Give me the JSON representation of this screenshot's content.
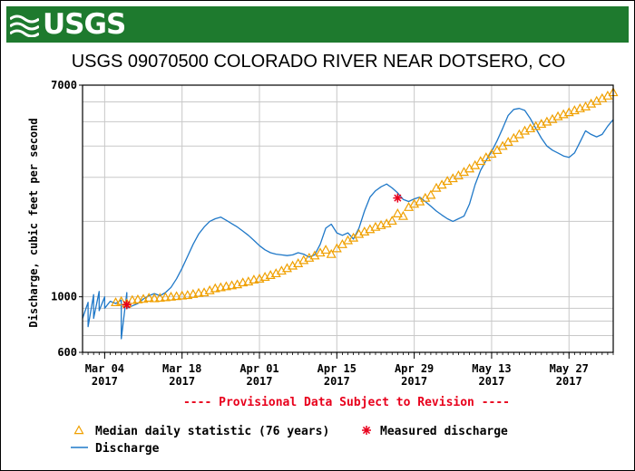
{
  "logo": {
    "wordmark": "USGS"
  },
  "colors": {
    "logo_bg": "#1e7a2e",
    "discharge": "#1f78c8",
    "median": "#f0a000",
    "measured": "#e8001c",
    "grid": "#c8c8c8",
    "provisional": "#e8001c"
  },
  "chart_data": {
    "type": "line",
    "title": "USGS 09070500 COLORADO RIVER NEAR DOTSERO, CO",
    "ylabel": "Discharge, cubic feet per second",
    "xlabel": "",
    "y_scale": "log",
    "ylim": [
      600,
      7000
    ],
    "xlim": [
      "2017-02-28",
      "2017-06-04"
    ],
    "y_tick_labels": [
      {
        "value": 7000,
        "label": "7000"
      },
      {
        "value": 1000,
        "label": "1000"
      },
      {
        "value": 600,
        "label": "600"
      }
    ],
    "y_gridlines": [
      700,
      800,
      900,
      1000,
      2000,
      3000,
      4000,
      5000,
      6000,
      7000
    ],
    "x_ticks": [
      {
        "date": "2017-03-04",
        "line1": "Mar 04",
        "line2": "2017"
      },
      {
        "date": "2017-03-18",
        "line1": "Mar 18",
        "line2": "2017"
      },
      {
        "date": "2017-04-01",
        "line1": "Apr 01",
        "line2": "2017"
      },
      {
        "date": "2017-04-15",
        "line1": "Apr 15",
        "line2": "2017"
      },
      {
        "date": "2017-04-29",
        "line1": "Apr 29",
        "line2": "2017"
      },
      {
        "date": "2017-05-13",
        "line1": "May 13",
        "line2": "2017"
      },
      {
        "date": "2017-05-27",
        "line1": "May 27",
        "line2": "2017"
      }
    ],
    "grid": true,
    "annotation": "---- Provisional Data Subject to Revision ----",
    "series": [
      {
        "name": "Discharge",
        "style": "line",
        "points": [
          [
            "2017-02-28",
            820
          ],
          [
            "2017-03-01",
            950
          ],
          [
            "2017-03-01",
            760
          ],
          [
            "2017-03-02",
            1020
          ],
          [
            "2017-03-02",
            820
          ],
          [
            "2017-03-03",
            1050
          ],
          [
            "2017-03-03",
            880
          ],
          [
            "2017-03-04",
            1000
          ],
          [
            "2017-03-04",
            900
          ],
          [
            "2017-03-05",
            960
          ],
          [
            "2017-03-06",
            940
          ],
          [
            "2017-03-07",
            970
          ],
          [
            "2017-03-07",
            880
          ],
          [
            "2017-03-07",
            680
          ],
          [
            "2017-03-08",
            1040
          ],
          [
            "2017-03-08",
            900
          ],
          [
            "2017-03-09",
            920
          ],
          [
            "2017-03-10",
            940
          ],
          [
            "2017-03-11",
            980
          ],
          [
            "2017-03-12",
            1010
          ],
          [
            "2017-03-13",
            1030
          ],
          [
            "2017-03-14",
            1010
          ],
          [
            "2017-03-15",
            1040
          ],
          [
            "2017-03-16",
            1090
          ],
          [
            "2017-03-17",
            1180
          ],
          [
            "2017-03-18",
            1300
          ],
          [
            "2017-03-19",
            1450
          ],
          [
            "2017-03-20",
            1620
          ],
          [
            "2017-03-21",
            1780
          ],
          [
            "2017-03-22",
            1900
          ],
          [
            "2017-03-23",
            2000
          ],
          [
            "2017-03-24",
            2050
          ],
          [
            "2017-03-25",
            2080
          ],
          [
            "2017-03-26",
            2020
          ],
          [
            "2017-03-27",
            1960
          ],
          [
            "2017-03-28",
            1900
          ],
          [
            "2017-03-29",
            1830
          ],
          [
            "2017-03-30",
            1760
          ],
          [
            "2017-03-31",
            1680
          ],
          [
            "2017-04-01",
            1600
          ],
          [
            "2017-04-02",
            1540
          ],
          [
            "2017-04-03",
            1500
          ],
          [
            "2017-04-04",
            1480
          ],
          [
            "2017-04-05",
            1470
          ],
          [
            "2017-04-06",
            1460
          ],
          [
            "2017-04-07",
            1470
          ],
          [
            "2017-04-08",
            1500
          ],
          [
            "2017-04-09",
            1480
          ],
          [
            "2017-04-10",
            1440
          ],
          [
            "2017-04-11",
            1470
          ],
          [
            "2017-04-12",
            1620
          ],
          [
            "2017-04-13",
            1880
          ],
          [
            "2017-04-14",
            1950
          ],
          [
            "2017-04-15",
            1800
          ],
          [
            "2017-04-16",
            1760
          ],
          [
            "2017-04-17",
            1800
          ],
          [
            "2017-04-18",
            1700
          ],
          [
            "2017-04-19",
            1880
          ],
          [
            "2017-04-20",
            2200
          ],
          [
            "2017-04-21",
            2500
          ],
          [
            "2017-04-22",
            2650
          ],
          [
            "2017-04-23",
            2750
          ],
          [
            "2017-04-24",
            2820
          ],
          [
            "2017-04-25",
            2720
          ],
          [
            "2017-04-26",
            2600
          ],
          [
            "2017-04-27",
            2450
          ],
          [
            "2017-04-28",
            2400
          ],
          [
            "2017-04-29",
            2460
          ],
          [
            "2017-04-30",
            2500
          ],
          [
            "2017-05-01",
            2400
          ],
          [
            "2017-05-02",
            2300
          ],
          [
            "2017-05-03",
            2200
          ],
          [
            "2017-05-04",
            2120
          ],
          [
            "2017-05-05",
            2050
          ],
          [
            "2017-05-06",
            2000
          ],
          [
            "2017-05-07",
            2050
          ],
          [
            "2017-05-08",
            2100
          ],
          [
            "2017-05-09",
            2350
          ],
          [
            "2017-05-10",
            2800
          ],
          [
            "2017-05-11",
            3200
          ],
          [
            "2017-05-12",
            3500
          ],
          [
            "2017-05-13",
            3800
          ],
          [
            "2017-05-14",
            4200
          ],
          [
            "2017-05-15",
            4700
          ],
          [
            "2017-05-16",
            5300
          ],
          [
            "2017-05-17",
            5600
          ],
          [
            "2017-05-18",
            5650
          ],
          [
            "2017-05-19",
            5550
          ],
          [
            "2017-05-20",
            5150
          ],
          [
            "2017-05-21",
            4700
          ],
          [
            "2017-05-22",
            4300
          ],
          [
            "2017-05-23",
            4000
          ],
          [
            "2017-05-24",
            3850
          ],
          [
            "2017-05-25",
            3750
          ],
          [
            "2017-05-26",
            3650
          ],
          [
            "2017-05-27",
            3600
          ],
          [
            "2017-05-28",
            3750
          ],
          [
            "2017-05-29",
            4150
          ],
          [
            "2017-05-30",
            4600
          ],
          [
            "2017-05-31",
            4450
          ],
          [
            "2017-06-01",
            4350
          ],
          [
            "2017-06-02",
            4450
          ],
          [
            "2017-06-03",
            4800
          ],
          [
            "2017-06-04",
            5100
          ]
        ]
      },
      {
        "name": "Median daily statistic (76 years)",
        "style": "triangle",
        "points": [
          [
            "2017-03-06",
            950
          ],
          [
            "2017-03-07",
            960
          ],
          [
            "2017-03-08",
            940
          ],
          [
            "2017-03-09",
            970
          ],
          [
            "2017-03-10",
            975
          ],
          [
            "2017-03-11",
            980
          ],
          [
            "2017-03-12",
            990
          ],
          [
            "2017-03-13",
            985
          ],
          [
            "2017-03-14",
            990
          ],
          [
            "2017-03-15",
            995
          ],
          [
            "2017-03-16",
            1000
          ],
          [
            "2017-03-17",
            1005
          ],
          [
            "2017-03-18",
            1010
          ],
          [
            "2017-03-19",
            1015
          ],
          [
            "2017-03-20",
            1025
          ],
          [
            "2017-03-21",
            1035
          ],
          [
            "2017-03-22",
            1040
          ],
          [
            "2017-03-23",
            1060
          ],
          [
            "2017-03-24",
            1080
          ],
          [
            "2017-03-25",
            1090
          ],
          [
            "2017-03-26",
            1100
          ],
          [
            "2017-03-27",
            1110
          ],
          [
            "2017-03-28",
            1120
          ],
          [
            "2017-03-29",
            1140
          ],
          [
            "2017-03-30",
            1150
          ],
          [
            "2017-03-31",
            1170
          ],
          [
            "2017-04-01",
            1180
          ],
          [
            "2017-04-02",
            1200
          ],
          [
            "2017-04-03",
            1220
          ],
          [
            "2017-04-04",
            1240
          ],
          [
            "2017-04-05",
            1270
          ],
          [
            "2017-04-06",
            1300
          ],
          [
            "2017-04-07",
            1330
          ],
          [
            "2017-04-08",
            1360
          ],
          [
            "2017-04-09",
            1400
          ],
          [
            "2017-04-10",
            1430
          ],
          [
            "2017-04-11",
            1460
          ],
          [
            "2017-04-12",
            1500
          ],
          [
            "2017-04-13",
            1540
          ],
          [
            "2017-04-14",
            1480
          ],
          [
            "2017-04-15",
            1560
          ],
          [
            "2017-04-16",
            1620
          ],
          [
            "2017-04-17",
            1680
          ],
          [
            "2017-04-18",
            1720
          ],
          [
            "2017-04-19",
            1780
          ],
          [
            "2017-04-20",
            1820
          ],
          [
            "2017-04-21",
            1860
          ],
          [
            "2017-04-22",
            1900
          ],
          [
            "2017-04-23",
            1930
          ],
          [
            "2017-04-24",
            1960
          ],
          [
            "2017-04-25",
            2010
          ],
          [
            "2017-04-26",
            2150
          ],
          [
            "2017-04-27",
            2100
          ],
          [
            "2017-04-28",
            2280
          ],
          [
            "2017-04-29",
            2350
          ],
          [
            "2017-04-30",
            2400
          ],
          [
            "2017-05-01",
            2480
          ],
          [
            "2017-05-02",
            2550
          ],
          [
            "2017-05-03",
            2720
          ],
          [
            "2017-05-04",
            2800
          ],
          [
            "2017-05-05",
            2900
          ],
          [
            "2017-05-06",
            2970
          ],
          [
            "2017-05-07",
            3050
          ],
          [
            "2017-05-08",
            3150
          ],
          [
            "2017-05-09",
            3250
          ],
          [
            "2017-05-10",
            3350
          ],
          [
            "2017-05-11",
            3480
          ],
          [
            "2017-05-12",
            3600
          ],
          [
            "2017-05-13",
            3720
          ],
          [
            "2017-05-14",
            3850
          ],
          [
            "2017-05-15",
            4000
          ],
          [
            "2017-05-16",
            4150
          ],
          [
            "2017-05-17",
            4300
          ],
          [
            "2017-05-18",
            4450
          ],
          [
            "2017-05-19",
            4600
          ],
          [
            "2017-05-20",
            4700
          ],
          [
            "2017-05-21",
            4800
          ],
          [
            "2017-05-22",
            4900
          ],
          [
            "2017-05-23",
            5000
          ],
          [
            "2017-05-24",
            5120
          ],
          [
            "2017-05-25",
            5250
          ],
          [
            "2017-05-26",
            5350
          ],
          [
            "2017-05-27",
            5450
          ],
          [
            "2017-05-28",
            5550
          ],
          [
            "2017-05-29",
            5650
          ],
          [
            "2017-05-30",
            5750
          ],
          [
            "2017-05-31",
            5900
          ],
          [
            "2017-06-01",
            6050
          ],
          [
            "2017-06-02",
            6200
          ],
          [
            "2017-06-03",
            6350
          ],
          [
            "2017-06-04",
            6550
          ]
        ]
      },
      {
        "name": "Measured discharge",
        "style": "asterisk",
        "points": [
          [
            "2017-03-08",
            930
          ],
          [
            "2017-04-26",
            2480
          ]
        ]
      }
    ],
    "legend": [
      {
        "label": "Median daily statistic (76 years)",
        "style": "triangle"
      },
      {
        "label": "Measured discharge",
        "style": "asterisk"
      },
      {
        "label": "Discharge",
        "style": "line"
      }
    ]
  }
}
